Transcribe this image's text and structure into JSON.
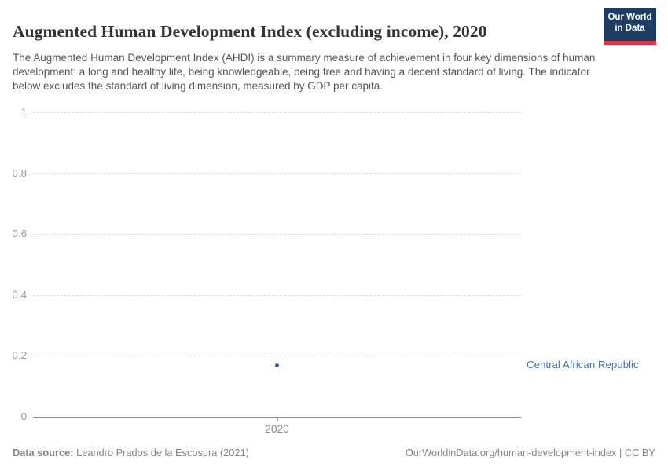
{
  "header": {
    "title": "Augmented Human Development Index (excluding income), 2020",
    "subtitle": "The Augmented Human Development Index (AHDI) is a summary measure of achievement in four key dimensions of human development: a long and healthy life, being knowledgeable, being free and having a decent standard of living. The indicator below excludes the standard of living dimension, measured by GDP per capita.",
    "logo": {
      "line1": "Our World",
      "line2": "in Data"
    }
  },
  "chart_data": {
    "type": "scatter",
    "title": "Augmented Human Development Index (excluding income), 2020",
    "xlabel": "",
    "ylabel": "",
    "ylim": [
      0,
      1
    ],
    "yticks": [
      "0",
      "0.2",
      "0.4",
      "0.6",
      "0.8",
      "1"
    ],
    "xticks": [
      "2020"
    ],
    "grid": true,
    "series": [
      {
        "name": "Central African Republic",
        "x": [
          2020
        ],
        "values": [
          0.17
        ],
        "color": "#41619e",
        "label_color": "#4673ab"
      }
    ]
  },
  "colors": {
    "logo_navy": "#1d3d63",
    "logo_red": "#dc354a",
    "accent_blue": "#4673ab"
  },
  "footer": {
    "datasource_label": "Data source:",
    "datasource_value": "Leandro Prados de la Escosura (2021)",
    "attribution": "OurWorldinData.org/human-development-index | CC BY"
  }
}
